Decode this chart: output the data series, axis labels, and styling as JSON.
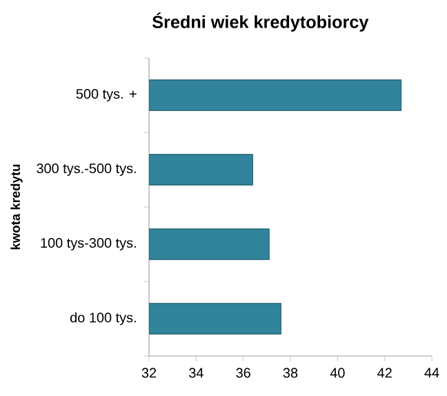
{
  "chart_data": {
    "type": "bar",
    "orientation": "horizontal",
    "title": "Średni wiek kredytobiorcy",
    "ylabel": "kwota kredytu",
    "categories": [
      "500 tys. +",
      "300 tys.-500 tys.",
      "100 tys-300 tys.",
      "do 100 tys."
    ],
    "values": [
      42.7,
      36.4,
      37.1,
      37.6
    ],
    "color": "#31849b",
    "xlim": [
      32,
      44
    ],
    "xticks": [
      32,
      34,
      36,
      38,
      40,
      42,
      44
    ],
    "grid": false
  }
}
